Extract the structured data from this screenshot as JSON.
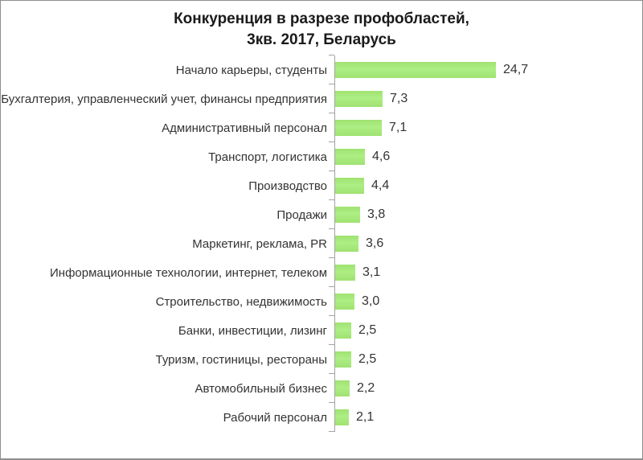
{
  "chart_data": {
    "type": "bar",
    "orientation": "horizontal",
    "title": "Конкуренция в разрезе профобластей, 3кв. 2017, Беларусь",
    "title_lines": [
      "Конкуренция в разрезе профобластей,",
      "3кв. 2017, Беларусь"
    ],
    "categories": [
      "Начало карьеры, студенты",
      "Бухгалтерия, управленческий учет, финансы предприятия",
      "Административный персонал",
      "Транспорт, логистика",
      "Производство",
      "Продажи",
      "Маркетинг, реклама, PR",
      "Информационные технологии, интернет, телеком",
      "Строительство, недвижимость",
      "Банки, инвестиции, лизинг",
      "Туризм, гостиницы, рестораны",
      "Автомобильный бизнес",
      "Рабочий персонал"
    ],
    "values": [
      24.7,
      7.3,
      7.1,
      4.6,
      4.4,
      3.8,
      3.6,
      3.1,
      3.0,
      2.5,
      2.5,
      2.2,
      2.1
    ],
    "value_labels": [
      "24,7",
      "7,3",
      "7,1",
      "4,6",
      "4,4",
      "3,8",
      "3,6",
      "3,1",
      "3,0",
      "2,5",
      "2,5",
      "2,2",
      "2,1"
    ],
    "xlabel": "",
    "ylabel": "",
    "xlim": [
      0,
      26
    ],
    "grid": false,
    "legend": "none",
    "bar_color": "#a6e87a",
    "axis_color": "#a3a3a3",
    "text_color": "#333333",
    "title_color": "#1a1a1a"
  }
}
